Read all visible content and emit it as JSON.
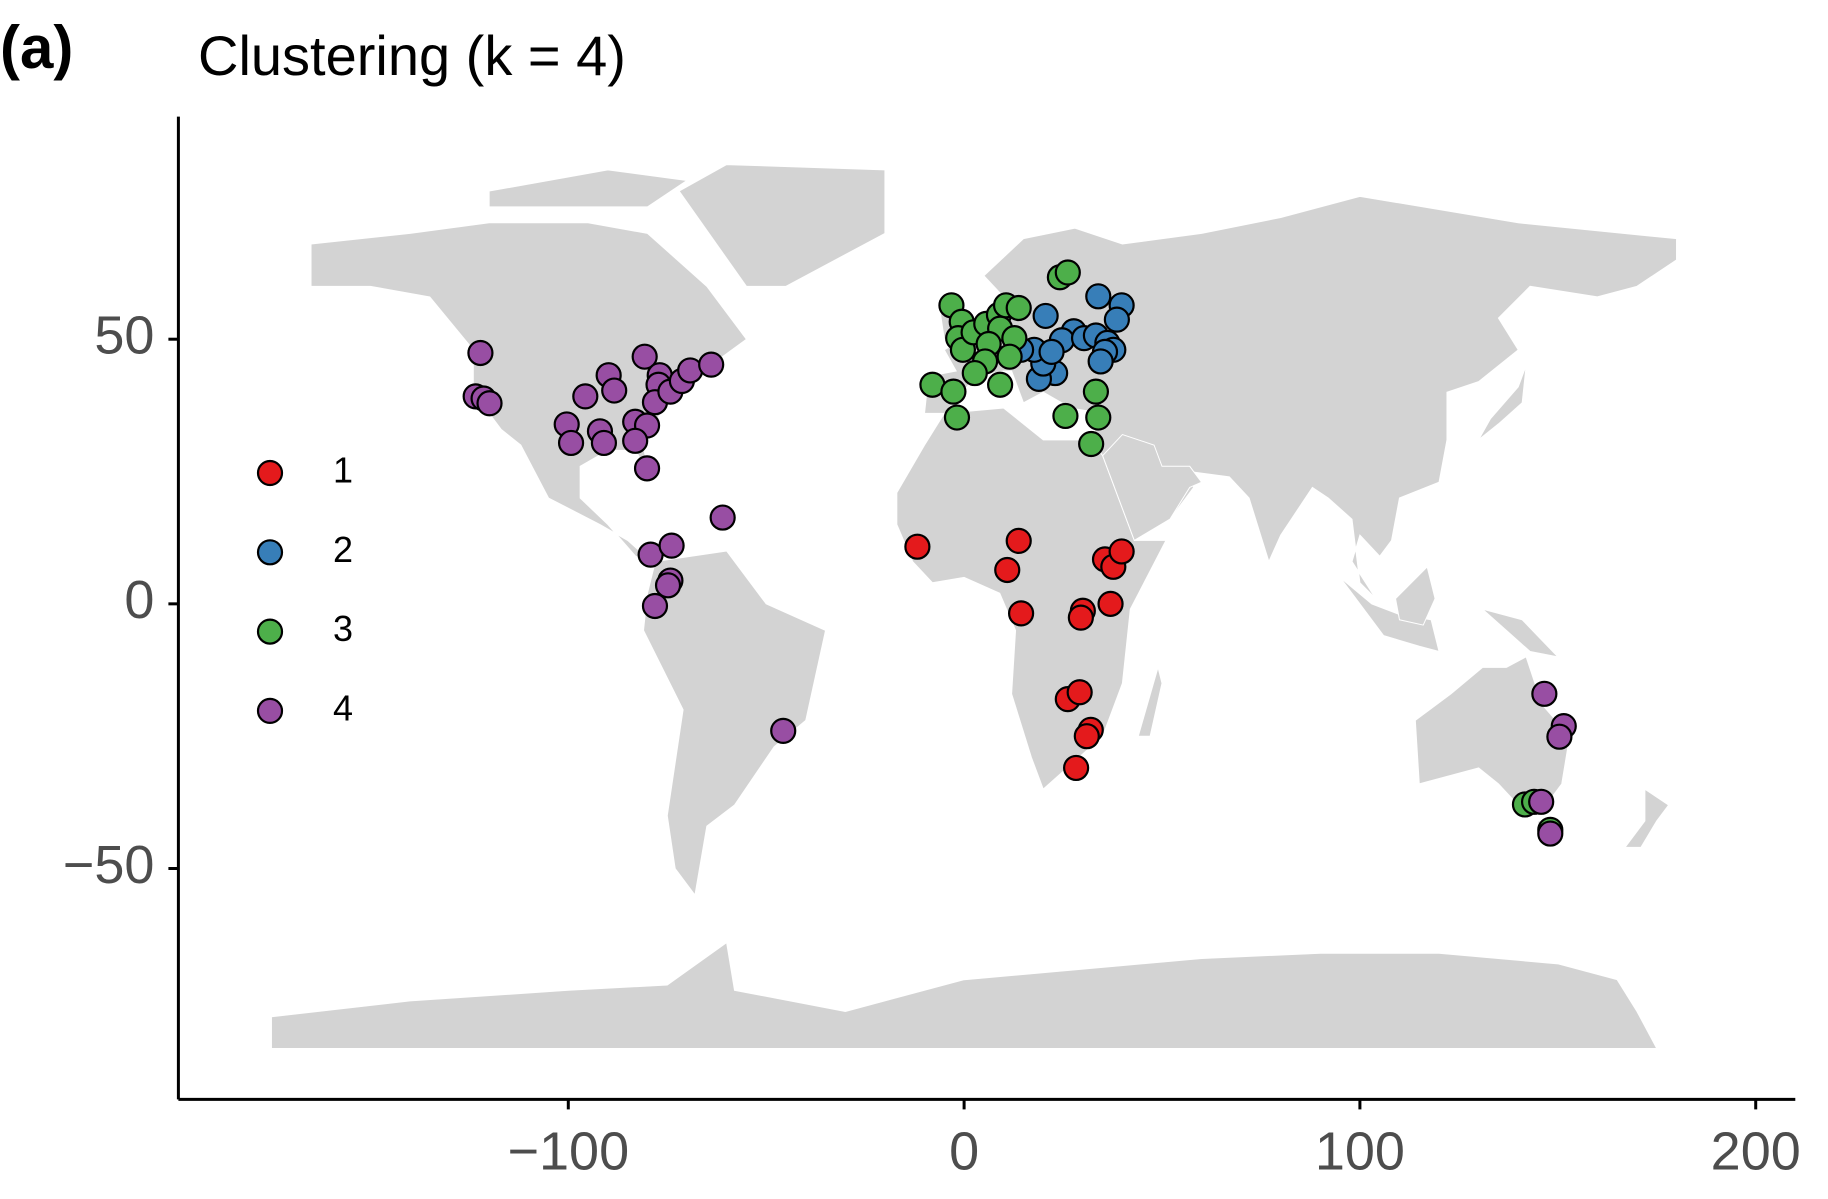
{
  "chart_data": {
    "type": "scatter",
    "panel_label": "(a)",
    "title": "Clustering (k = 4)",
    "xlim": [
      -198,
      210
    ],
    "ylim": [
      -93,
      92
    ],
    "xticks": [
      {
        "value": -100,
        "label": "−100"
      },
      0,
      100,
      200
    ],
    "yticks": [
      {
        "value": -50,
        "label": "−50"
      },
      0,
      50
    ],
    "legend": "left",
    "series": [
      {
        "name": "1",
        "color": "#e41a1c",
        "x": [
          -11.8,
          10.9,
          13.8,
          14.4,
          30,
          29.5,
          35.6,
          37.7,
          39.8,
          37,
          26.2,
          29.2,
          32,
          31,
          28.3
        ],
        "values": [
          10.8,
          6.4,
          11.9,
          -1.8,
          -1.3,
          -2.6,
          8.4,
          7,
          9.9,
          0,
          -18,
          -16.7,
          -23.8,
          -25,
          -31
        ]
      },
      {
        "name": "2",
        "color": "#377eb8",
        "x": [
          20.6,
          33.9,
          39.8,
          38.6,
          27.7,
          24.7,
          30.3,
          33.3,
          36.2,
          37.7,
          35.6,
          34.5,
          23,
          18.9,
          20,
          17.7,
          14.4,
          22.1
        ],
        "values": [
          54.4,
          58.1,
          56.4,
          53.7,
          51.5,
          49.8,
          50.2,
          50.7,
          49.3,
          48,
          47.6,
          45.8,
          43.6,
          42.5,
          45.4,
          48,
          48,
          47.6
        ]
      },
      {
        "name": "3",
        "color": "#4daf4a",
        "x": [
          -3.2,
          -0.6,
          -1.5,
          -0.3,
          2.4,
          5.6,
          8.8,
          10.6,
          13.8,
          9.1,
          12.7,
          6.2,
          5.3,
          11.5,
          2.7,
          9.1,
          -8,
          -2.7,
          -1.8,
          24.2,
          26.2,
          33.3,
          25.6,
          33.9,
          32.1,
          141.7,
          144,
          148.1
        ],
        "values": [
          56.4,
          53.3,
          50.2,
          48,
          51.3,
          52.9,
          54.6,
          56.4,
          55.9,
          52,
          50.2,
          49.1,
          45.8,
          46.7,
          43.6,
          41.4,
          41.4,
          40.1,
          35.2,
          61.7,
          62.6,
          40.1,
          35.5,
          35.2,
          30.2,
          -37.9,
          -37.4,
          -42.7
        ]
      },
      {
        "name": "4",
        "color": "#984ea3",
        "x": [
          -122.2,
          -123.4,
          -121.4,
          -119.9,
          -100.4,
          -99.3,
          -95.7,
          -89.8,
          -88.4,
          -92,
          -91,
          -80.7,
          -76.9,
          -77.2,
          -78.1,
          -74.2,
          -71.3,
          -69.2,
          -63.9,
          -83.1,
          -80.1,
          -83.1,
          -80.1,
          -61,
          -79.2,
          -73.9,
          -74.2,
          -74.8,
          -78.1,
          -45.7,
          146.6,
          151.5,
          150.4,
          145.8,
          148.1
        ],
        "values": [
          47.4,
          39.2,
          38.8,
          37.9,
          33.9,
          30.4,
          39.2,
          43.2,
          40.3,
          32.6,
          30.4,
          46.7,
          43.2,
          41.4,
          38.1,
          40.1,
          42.1,
          44.1,
          45.2,
          34.4,
          33.7,
          30.8,
          25.6,
          16.3,
          9.3,
          11,
          4.4,
          3.5,
          -0.4,
          -24,
          -17,
          -23.1,
          -25.1,
          -37.4,
          -43.4
        ]
      }
    ]
  }
}
